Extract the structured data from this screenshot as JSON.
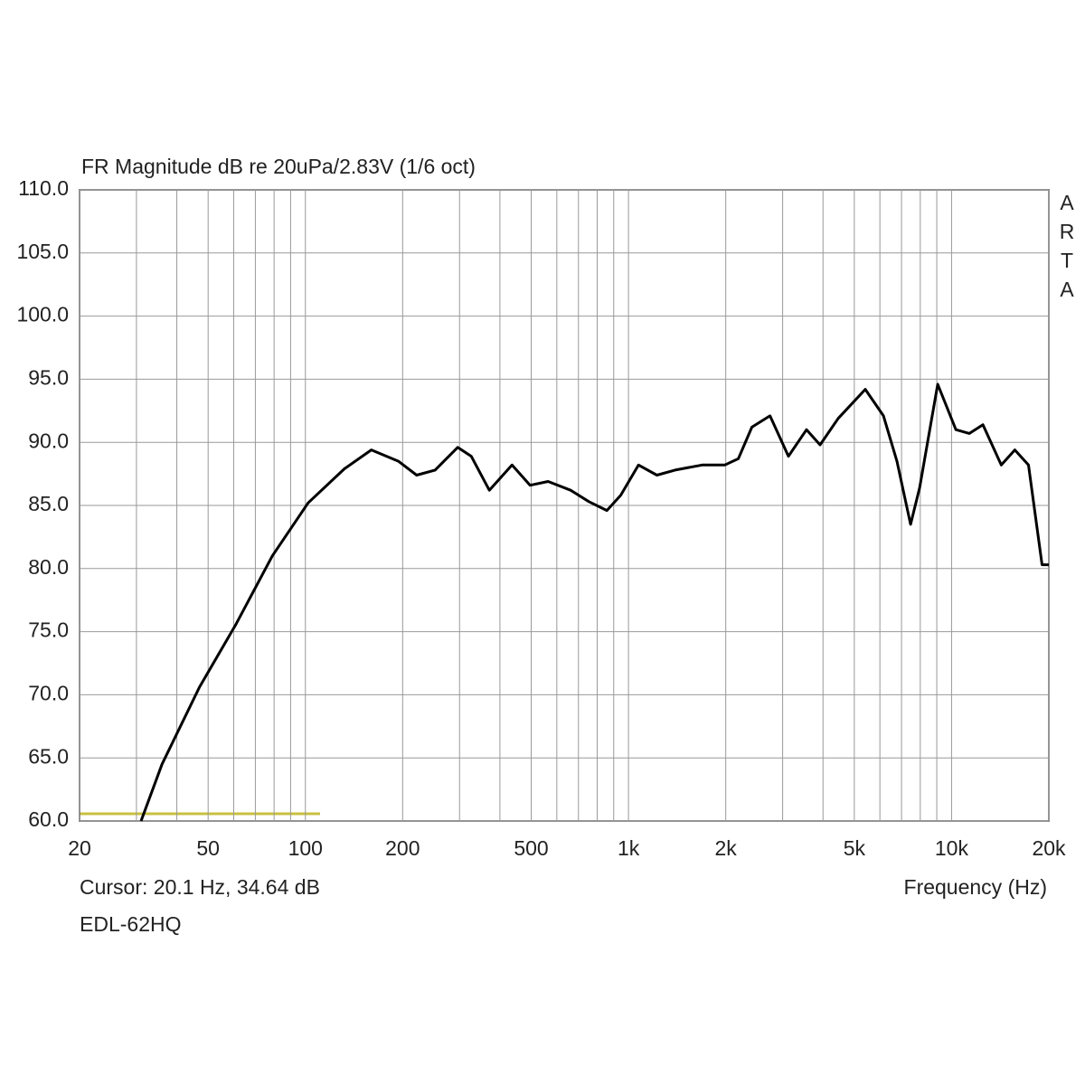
{
  "chart_data": {
    "type": "line",
    "title": "FR Magnitude dB re 20uPa/2.83V (1/6 oct)",
    "watermark": "ARTA",
    "cursor_text": "Cursor: 20.1 Hz, 34.64 dB",
    "x_label": "Frequency (Hz)",
    "device": "EDL-62HQ",
    "x_scale": "log",
    "grid": true,
    "xlim": [
      20,
      20000
    ],
    "ylim": [
      60,
      110
    ],
    "xticks": [
      20,
      50,
      100,
      200,
      500,
      {
        "value": 1000,
        "label": "1k"
      },
      {
        "value": 2000,
        "label": "2k"
      },
      {
        "value": 5000,
        "label": "5k"
      },
      {
        "value": 10000,
        "label": "10k"
      },
      {
        "value": 20000,
        "label": "20k"
      }
    ],
    "x_minor_ticks": [
      30,
      40,
      60,
      70,
      80,
      90,
      300,
      400,
      600,
      700,
      800,
      900,
      3000,
      4000,
      6000,
      7000,
      8000,
      9000
    ],
    "yticks": [
      {
        "value": 60,
        "label": "60.0"
      },
      {
        "value": 65,
        "label": "65.0"
      },
      {
        "value": 70,
        "label": "70.0"
      },
      {
        "value": 75,
        "label": "75.0"
      },
      {
        "value": 80,
        "label": "80.0"
      },
      {
        "value": 85,
        "label": "85.0"
      },
      {
        "value": 90,
        "label": "90.0"
      },
      {
        "value": 95,
        "label": "95.0"
      },
      {
        "value": 100,
        "label": "100.0"
      },
      {
        "value": 105,
        "label": "105.0"
      },
      {
        "value": 110,
        "label": "110.0"
      }
    ],
    "series": [
      {
        "color": "#000000",
        "x": [
          31,
          36,
          47,
          61,
          79,
          102,
          132,
          160,
          194,
          221,
          252,
          296,
          326,
          371,
          436,
          496,
          564,
          662,
          754,
          857,
          946,
          1074,
          1224,
          1394,
          1690,
          1986,
          2188,
          2410,
          2742,
          3126,
          3556,
          3918,
          4458,
          5408,
          6154,
          6776,
          7465,
          7965,
          9061,
          10310,
          11350,
          12500,
          14250,
          15700,
          17300,
          19060,
          20000
        ],
        "values": [
          60.0,
          64.5,
          70.6,
          75.6,
          81.0,
          85.2,
          87.9,
          89.4,
          88.5,
          87.4,
          87.8,
          89.6,
          88.9,
          86.2,
          88.2,
          86.6,
          86.9,
          86.2,
          85.3,
          84.6,
          85.8,
          88.2,
          87.4,
          87.8,
          88.2,
          88.2,
          88.7,
          91.2,
          92.1,
          88.9,
          91.0,
          89.8,
          91.9,
          94.2,
          92.1,
          88.5,
          83.5,
          86.4,
          94.6,
          91.0,
          90.7,
          91.4,
          88.2,
          89.4,
          88.2,
          80.3,
          80.3
        ]
      }
    ]
  }
}
